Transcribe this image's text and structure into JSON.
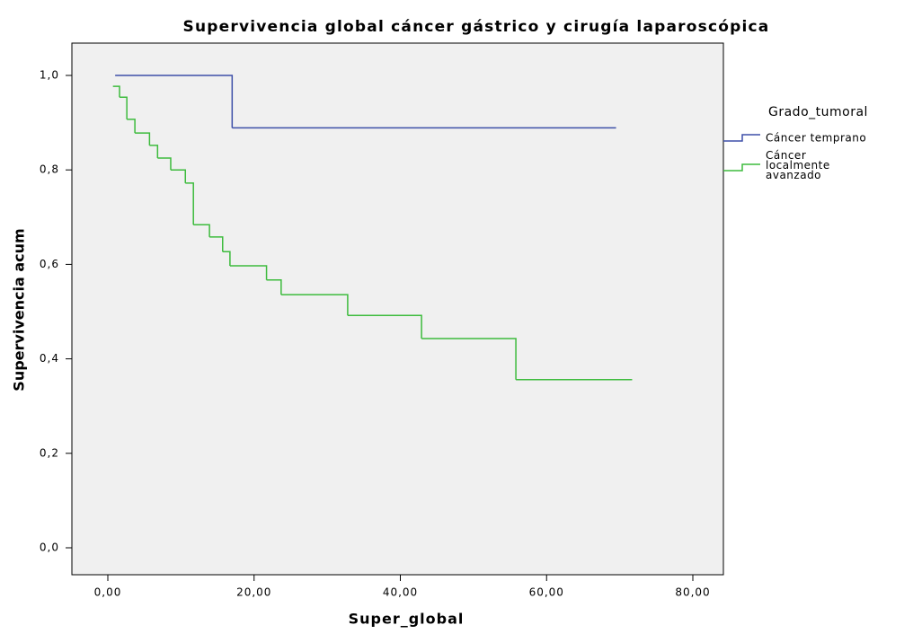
{
  "chart_data": {
    "type": "step",
    "title": "Supervivencia global cáncer gástrico y cirugía laparoscópica",
    "x_label": "Super_global",
    "y_label": "Supervivencia acum",
    "legend_title": "Grado_tumoral",
    "legend_position": "right",
    "xlim": [
      0,
      80
    ],
    "xticks": [
      {
        "value": 0,
        "label": "0,00"
      },
      {
        "value": 20,
        "label": "20,00"
      },
      {
        "value": 40,
        "label": "40,00"
      },
      {
        "value": 60,
        "label": "60,00"
      },
      {
        "value": 80,
        "label": "80,00"
      }
    ],
    "ylim": [
      0,
      1
    ],
    "yticks": [
      {
        "value": 0,
        "label": "0,0"
      },
      {
        "value": 0.2,
        "label": "0,2"
      },
      {
        "value": 0.4,
        "label": "0,4"
      },
      {
        "value": 0.6,
        "label": "0,6"
      },
      {
        "value": 0.8,
        "label": "0,8"
      },
      {
        "value": 1,
        "label": "1,0"
      }
    ],
    "series": [
      {
        "name": "Cáncer temprano",
        "color": "#3d4fa8",
        "x": [
          1,
          17,
          69.5
        ],
        "values": [
          1,
          0.889,
          0.889
        ]
      },
      {
        "name": "Cáncer localmente avanzado",
        "color": "#3dbb3d",
        "x": [
          0.7,
          1.6,
          2.6,
          3.7,
          5.7,
          6.8,
          8.6,
          10.6,
          11.7,
          13.9,
          15.7,
          16.7,
          21.7,
          23.7,
          32.8,
          42.9,
          55.8,
          71.7
        ],
        "values": [
          0.977,
          0.954,
          0.907,
          0.878,
          0.852,
          0.825,
          0.8,
          0.772,
          0.684,
          0.658,
          0.627,
          0.597,
          0.567,
          0.536,
          0.492,
          0.443,
          0.356,
          0.356
        ]
      }
    ]
  }
}
